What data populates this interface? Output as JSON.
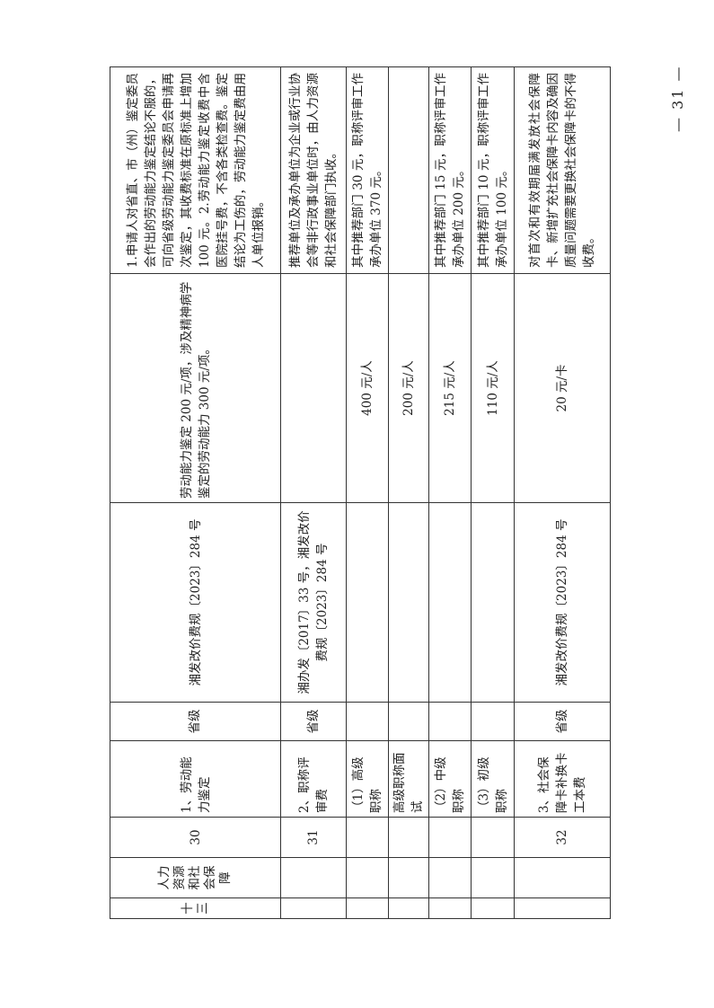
{
  "page_number": "— 31 —",
  "rows": [
    {
      "section": "十三",
      "department": "人力资源和社会保障",
      "no": "30",
      "item": "1、劳动能力鉴定",
      "level": "省级",
      "basis": "湘发改价费规〔2023〕284 号",
      "standard": "劳动能力鉴定 200 元/项，涉及精神病学鉴定的劳动能力 300 元/项。",
      "remark": "1.申请人对省直、市（州）鉴定委员会作出的劳动能力鉴定结论不服的，可向省级劳动能力鉴定委员会申请再次鉴定，其收费标准在原标准上增加 100 元。2.劳动能力鉴定收费中含医院挂号费，不含各类检查费。鉴定结论为工伤的，劳动能力鉴定费由用人单位报销。"
    },
    {
      "section": "",
      "department": "",
      "no": "31",
      "item": "2、职称评审费",
      "level": "省级",
      "basis": "湘办发〔2017〕33 号，湘发改价费规〔2023〕284 号",
      "standard": "",
      "remark": "推荐单位及承办单位为企业或行业协会等非行政事业单位时，由人力资源和社会保障部门执收。"
    },
    {
      "section": "",
      "department": "",
      "no": "",
      "item": "（1）高级职称",
      "level": "",
      "basis": "",
      "standard": "400 元/人",
      "remark": "其中推荐部门 30 元，职称评审工作承办单位 370 元。"
    },
    {
      "section": "",
      "department": "",
      "no": "",
      "item": "高级职称面试",
      "level": "",
      "basis": "",
      "standard": "200 元/人",
      "remark": ""
    },
    {
      "section": "",
      "department": "",
      "no": "",
      "item": "（2）中级职称",
      "level": "",
      "basis": "",
      "standard": "215 元/人",
      "remark": "其中推荐部门 15 元，职称评审工作承办单位 200 元。"
    },
    {
      "section": "",
      "department": "",
      "no": "",
      "item": "（3）初级职称",
      "level": "",
      "basis": "",
      "standard": "110 元/人",
      "remark": "其中推荐部门 10 元，职称评审工作承办单位 100 元。"
    },
    {
      "section": "",
      "department": "",
      "no": "32",
      "item": "3、社会保障卡补换卡工本费",
      "level": "省级",
      "basis": "湘发改价费规〔2023〕284 号",
      "standard": "20 元/卡",
      "remark": "对首次和有效期届满发放社会保障卡、新增扩充社会保障卡内容及确因质量问题需要更换社会保障卡的不得收费。"
    }
  ]
}
